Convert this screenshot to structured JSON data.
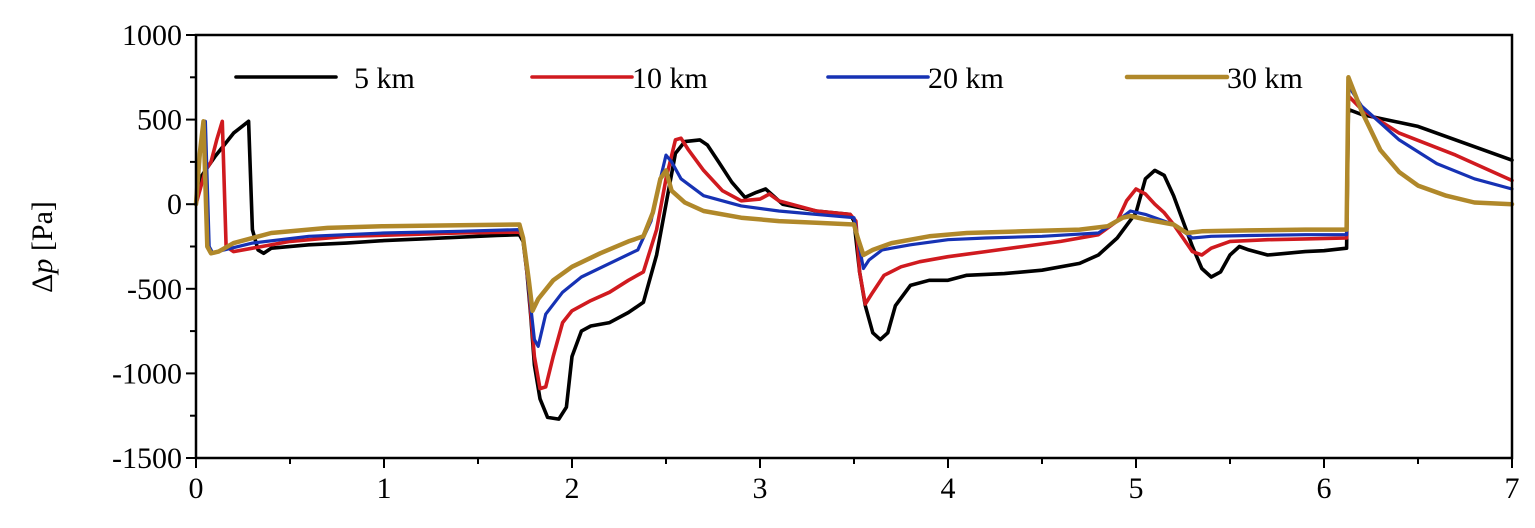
{
  "chart_data": {
    "type": "line",
    "title": "",
    "xlabel": "",
    "ylabel_symbol": "Δ",
    "ylabel_var": "p",
    "ylabel_unit": " [Pa]",
    "xlim": [
      0,
      7
    ],
    "ylim": [
      -1500,
      1000
    ],
    "x_ticks": [
      0,
      1,
      2,
      3,
      4,
      5,
      6,
      7
    ],
    "x_tick_labels": [
      "0",
      "1",
      "2",
      "3",
      "4",
      "5",
      "6",
      "7"
    ],
    "y_ticks": [
      1000,
      500,
      0,
      -500,
      -1000,
      -1500
    ],
    "y_tick_labels": [
      "1000",
      "500",
      "0",
      "-500",
      "-1000",
      "-1500"
    ],
    "legend_position": "top",
    "series": [
      {
        "name": "5 km",
        "color": "#000000",
        "points": [
          [
            0,
            0
          ],
          [
            0.02,
            150
          ],
          [
            0.05,
            200
          ],
          [
            0.1,
            280
          ],
          [
            0.15,
            350
          ],
          [
            0.2,
            420
          ],
          [
            0.28,
            490
          ],
          [
            0.3,
            -150
          ],
          [
            0.33,
            -270
          ],
          [
            0.36,
            -290
          ],
          [
            0.4,
            -260
          ],
          [
            0.6,
            -240
          ],
          [
            0.8,
            -230
          ],
          [
            1.0,
            -215
          ],
          [
            1.2,
            -205
          ],
          [
            1.4,
            -195
          ],
          [
            1.6,
            -185
          ],
          [
            1.72,
            -180
          ],
          [
            1.74,
            -220
          ],
          [
            1.76,
            -400
          ],
          [
            1.78,
            -650
          ],
          [
            1.8,
            -950
          ],
          [
            1.83,
            -1150
          ],
          [
            1.87,
            -1260
          ],
          [
            1.93,
            -1270
          ],
          [
            1.97,
            -1200
          ],
          [
            2.0,
            -900
          ],
          [
            2.05,
            -750
          ],
          [
            2.1,
            -720
          ],
          [
            2.2,
            -700
          ],
          [
            2.3,
            -640
          ],
          [
            2.38,
            -580
          ],
          [
            2.45,
            -300
          ],
          [
            2.5,
            0
          ],
          [
            2.55,
            300
          ],
          [
            2.6,
            370
          ],
          [
            2.68,
            380
          ],
          [
            2.72,
            350
          ],
          [
            2.78,
            250
          ],
          [
            2.85,
            130
          ],
          [
            2.92,
            40
          ],
          [
            2.98,
            70
          ],
          [
            3.03,
            90
          ],
          [
            3.07,
            50
          ],
          [
            3.12,
            0
          ],
          [
            3.3,
            -40
          ],
          [
            3.48,
            -60
          ],
          [
            3.5,
            -100
          ],
          [
            3.53,
            -400
          ],
          [
            3.56,
            -600
          ],
          [
            3.6,
            -760
          ],
          [
            3.64,
            -800
          ],
          [
            3.68,
            -760
          ],
          [
            3.72,
            -600
          ],
          [
            3.8,
            -480
          ],
          [
            3.9,
            -450
          ],
          [
            4.0,
            -450
          ],
          [
            4.1,
            -420
          ],
          [
            4.3,
            -410
          ],
          [
            4.5,
            -390
          ],
          [
            4.7,
            -350
          ],
          [
            4.8,
            -300
          ],
          [
            4.9,
            -200
          ],
          [
            5.0,
            -50
          ],
          [
            5.05,
            150
          ],
          [
            5.1,
            200
          ],
          [
            5.15,
            170
          ],
          [
            5.2,
            50
          ],
          [
            5.25,
            -100
          ],
          [
            5.3,
            -250
          ],
          [
            5.35,
            -380
          ],
          [
            5.4,
            -430
          ],
          [
            5.45,
            -400
          ],
          [
            5.5,
            -300
          ],
          [
            5.55,
            -250
          ],
          [
            5.6,
            -270
          ],
          [
            5.7,
            -300
          ],
          [
            5.8,
            -290
          ],
          [
            5.9,
            -280
          ],
          [
            6.0,
            -275
          ],
          [
            6.12,
            -260
          ],
          [
            6.13,
            560
          ],
          [
            6.2,
            530
          ],
          [
            6.5,
            460
          ],
          [
            7.0,
            260
          ]
        ]
      },
      {
        "name": "10 km",
        "color": "#d01a1f",
        "points": [
          [
            0,
            0
          ],
          [
            0.05,
            200
          ],
          [
            0.08,
            250
          ],
          [
            0.11,
            380
          ],
          [
            0.14,
            490
          ],
          [
            0.16,
            -250
          ],
          [
            0.2,
            -280
          ],
          [
            0.3,
            -260
          ],
          [
            0.5,
            -220
          ],
          [
            0.8,
            -190
          ],
          [
            1.1,
            -180
          ],
          [
            1.4,
            -170
          ],
          [
            1.72,
            -165
          ],
          [
            1.74,
            -200
          ],
          [
            1.77,
            -500
          ],
          [
            1.8,
            -900
          ],
          [
            1.83,
            -1090
          ],
          [
            1.86,
            -1080
          ],
          [
            1.9,
            -900
          ],
          [
            1.95,
            -700
          ],
          [
            2.0,
            -630
          ],
          [
            2.1,
            -570
          ],
          [
            2.2,
            -520
          ],
          [
            2.3,
            -450
          ],
          [
            2.38,
            -400
          ],
          [
            2.45,
            -150
          ],
          [
            2.5,
            150
          ],
          [
            2.55,
            380
          ],
          [
            2.58,
            390
          ],
          [
            2.62,
            320
          ],
          [
            2.7,
            200
          ],
          [
            2.8,
            80
          ],
          [
            2.9,
            20
          ],
          [
            3.0,
            30
          ],
          [
            3.05,
            60
          ],
          [
            3.1,
            20
          ],
          [
            3.3,
            -40
          ],
          [
            3.48,
            -60
          ],
          [
            3.51,
            -100
          ],
          [
            3.53,
            -400
          ],
          [
            3.56,
            -590
          ],
          [
            3.6,
            -520
          ],
          [
            3.66,
            -420
          ],
          [
            3.75,
            -370
          ],
          [
            3.85,
            -340
          ],
          [
            4.0,
            -310
          ],
          [
            4.2,
            -280
          ],
          [
            4.4,
            -250
          ],
          [
            4.6,
            -220
          ],
          [
            4.8,
            -180
          ],
          [
            4.9,
            -100
          ],
          [
            4.95,
            20
          ],
          [
            5.0,
            90
          ],
          [
            5.05,
            60
          ],
          [
            5.1,
            0
          ],
          [
            5.15,
            -50
          ],
          [
            5.2,
            -120
          ],
          [
            5.25,
            -200
          ],
          [
            5.3,
            -280
          ],
          [
            5.35,
            -300
          ],
          [
            5.4,
            -260
          ],
          [
            5.5,
            -220
          ],
          [
            5.7,
            -210
          ],
          [
            5.9,
            -205
          ],
          [
            6.12,
            -200
          ],
          [
            6.13,
            640
          ],
          [
            6.2,
            560
          ],
          [
            6.4,
            420
          ],
          [
            6.7,
            290
          ],
          [
            7.0,
            140
          ]
        ]
      },
      {
        "name": "20 km",
        "color": "#1632b4",
        "points": [
          [
            0,
            0
          ],
          [
            0.03,
            400
          ],
          [
            0.05,
            490
          ],
          [
            0.07,
            -250
          ],
          [
            0.09,
            -290
          ],
          [
            0.15,
            -270
          ],
          [
            0.3,
            -230
          ],
          [
            0.6,
            -190
          ],
          [
            1.0,
            -170
          ],
          [
            1.4,
            -160
          ],
          [
            1.72,
            -150
          ],
          [
            1.74,
            -200
          ],
          [
            1.77,
            -500
          ],
          [
            1.8,
            -800
          ],
          [
            1.82,
            -840
          ],
          [
            1.86,
            -650
          ],
          [
            1.95,
            -520
          ],
          [
            2.05,
            -430
          ],
          [
            2.2,
            -350
          ],
          [
            2.35,
            -270
          ],
          [
            2.42,
            -100
          ],
          [
            2.47,
            150
          ],
          [
            2.5,
            290
          ],
          [
            2.53,
            250
          ],
          [
            2.58,
            150
          ],
          [
            2.7,
            50
          ],
          [
            2.9,
            -10
          ],
          [
            3.1,
            -40
          ],
          [
            3.3,
            -60
          ],
          [
            3.5,
            -80
          ],
          [
            3.52,
            -200
          ],
          [
            3.55,
            -380
          ],
          [
            3.58,
            -330
          ],
          [
            3.65,
            -270
          ],
          [
            3.8,
            -240
          ],
          [
            4.0,
            -210
          ],
          [
            4.2,
            -200
          ],
          [
            4.5,
            -190
          ],
          [
            4.8,
            -170
          ],
          [
            4.9,
            -100
          ],
          [
            4.97,
            -40
          ],
          [
            5.05,
            -60
          ],
          [
            5.2,
            -120
          ],
          [
            5.3,
            -200
          ],
          [
            5.4,
            -190
          ],
          [
            5.6,
            -185
          ],
          [
            5.9,
            -180
          ],
          [
            6.12,
            -180
          ],
          [
            6.13,
            700
          ],
          [
            6.2,
            580
          ],
          [
            6.4,
            380
          ],
          [
            6.6,
            240
          ],
          [
            6.8,
            150
          ],
          [
            7.0,
            90
          ]
        ]
      },
      {
        "name": "30 km",
        "color": "#b0882a",
        "points": [
          [
            0,
            0
          ],
          [
            0.02,
            300
          ],
          [
            0.04,
            490
          ],
          [
            0.06,
            -250
          ],
          [
            0.08,
            -290
          ],
          [
            0.12,
            -280
          ],
          [
            0.2,
            -230
          ],
          [
            0.4,
            -170
          ],
          [
            0.7,
            -140
          ],
          [
            1.0,
            -130
          ],
          [
            1.4,
            -125
          ],
          [
            1.72,
            -120
          ],
          [
            1.74,
            -200
          ],
          [
            1.77,
            -450
          ],
          [
            1.79,
            -630
          ],
          [
            1.82,
            -560
          ],
          [
            1.9,
            -450
          ],
          [
            2.0,
            -370
          ],
          [
            2.15,
            -290
          ],
          [
            2.3,
            -220
          ],
          [
            2.38,
            -190
          ],
          [
            2.43,
            -50
          ],
          [
            2.47,
            150
          ],
          [
            2.5,
            200
          ],
          [
            2.53,
            80
          ],
          [
            2.6,
            10
          ],
          [
            2.7,
            -40
          ],
          [
            2.9,
            -80
          ],
          [
            3.1,
            -100
          ],
          [
            3.3,
            -110
          ],
          [
            3.5,
            -120
          ],
          [
            3.52,
            -200
          ],
          [
            3.55,
            -300
          ],
          [
            3.6,
            -270
          ],
          [
            3.7,
            -230
          ],
          [
            3.9,
            -190
          ],
          [
            4.1,
            -170
          ],
          [
            4.4,
            -160
          ],
          [
            4.7,
            -150
          ],
          [
            4.85,
            -130
          ],
          [
            4.93,
            -80
          ],
          [
            4.97,
            -70
          ],
          [
            5.05,
            -90
          ],
          [
            5.2,
            -120
          ],
          [
            5.27,
            -170
          ],
          [
            5.35,
            -160
          ],
          [
            5.6,
            -155
          ],
          [
            5.9,
            -150
          ],
          [
            6.12,
            -150
          ],
          [
            6.13,
            750
          ],
          [
            6.2,
            550
          ],
          [
            6.3,
            320
          ],
          [
            6.4,
            190
          ],
          [
            6.5,
            110
          ],
          [
            6.65,
            50
          ],
          [
            6.8,
            10
          ],
          [
            7.0,
            0
          ]
        ]
      }
    ]
  }
}
